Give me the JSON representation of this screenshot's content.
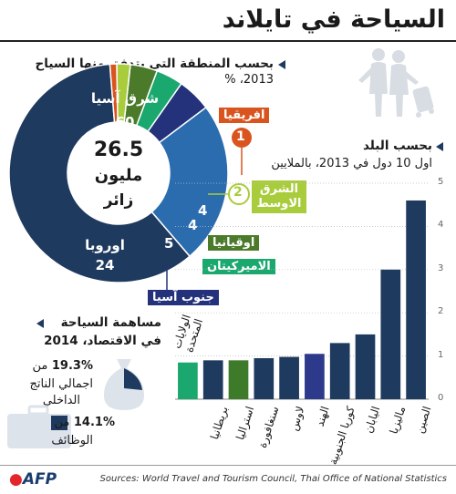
{
  "title": "السياحة في تايلاند",
  "region_section": {
    "heading": "بحسب المنطقة التي يتدفق منها السياح",
    "subheading": "2013، %",
    "center_value": "26.5",
    "center_unit": "مليون",
    "center_label": "زائر",
    "regions": [
      {
        "name": "شرق آسيا",
        "value": 60,
        "color": "#1f3a5f"
      },
      {
        "name": "اوروبا",
        "value": 24,
        "color": "#2a6cae"
      },
      {
        "name": "جنوب آسيا",
        "value": 5,
        "color": "#23327a"
      },
      {
        "name": "الاميركيتان",
        "value": 4,
        "color": "#1aa86e"
      },
      {
        "name": "اوقيانيا",
        "value": 4,
        "color": "#4a7a2a"
      },
      {
        "name": "الشرق الاوسط",
        "value": 2,
        "color": "#a9cc3c"
      },
      {
        "name": "افريقيا",
        "value": 1,
        "color": "#d9541e"
      }
    ]
  },
  "chart_data": {
    "type": "bar",
    "title": "بحسب البلد",
    "subtitle": "اول 10 دول في 2013، بالملايين",
    "categories": [
      "الصين",
      "ماليزيا",
      "اليابان",
      "كوريا الجنوبية",
      "الهند",
      "لاوس",
      "سنغافورة",
      "استراليا",
      "بريطانيا",
      "الولايات المتحدة"
    ],
    "values": [
      4.6,
      3.0,
      1.5,
      1.3,
      1.05,
      0.98,
      0.95,
      0.9,
      0.9,
      0.85
    ],
    "colors": [
      "#1f3a5f",
      "#1f3a5f",
      "#1f3a5f",
      "#1f3a5f",
      "#2d3a8c",
      "#1f3a5f",
      "#1f3a5f",
      "#3d7a2a",
      "#1f3a5f",
      "#1aa86e"
    ],
    "yticks": [
      "0",
      "1",
      "2",
      "3",
      "4",
      "5"
    ],
    "ylim": [
      0,
      5
    ]
  },
  "economy": {
    "heading": "مساهمة السياحة",
    "subheading": "في الاقتصاد، 2014",
    "gdp_value": "19.3%",
    "gdp_text1": "من",
    "gdp_text2": "اجمالي الناتج",
    "gdp_text3": "الداخلي",
    "jobs_value": "14.1%",
    "jobs_text1": "من",
    "jobs_text2": "الوظائف"
  },
  "source": "Sources: World Travel and Tourism Council, Thai Office of National Statistics",
  "logo": "AFP"
}
